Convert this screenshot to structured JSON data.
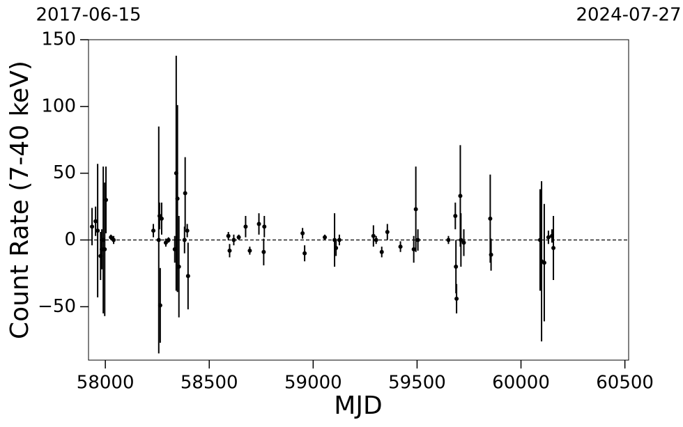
{
  "chart_data": {
    "type": "errorbar-scatter",
    "x_label": "MJD",
    "y_label": "Count Rate (7-40 keV)",
    "xlim": [
      57919,
      60518
    ],
    "ylim": [
      -90,
      150
    ],
    "xticks": [
      58000,
      58500,
      59000,
      59500,
      60000,
      60500
    ],
    "yticks": [
      {
        "value": -50,
        "label": "−50"
      },
      0,
      50,
      100,
      150
    ],
    "x2ticks": [
      {
        "value": 57919,
        "label": "2017-06-15"
      },
      {
        "value": 60518,
        "label": "2024-07-27"
      }
    ],
    "hline": 0,
    "color": "#000000",
    "series": [
      {
        "color": "#000000",
        "x": [
          57936,
          57953,
          57963,
          57977,
          57983,
          57990,
          57997,
          58003,
          58027,
          58040,
          58231,
          58257,
          58261,
          58264,
          58271,
          58291,
          58304,
          58334,
          58341,
          58347,
          58354,
          58381,
          58384,
          58394,
          58398,
          58592,
          58598,
          58618,
          58642,
          58675,
          58695,
          58739,
          58762,
          58765,
          58949,
          58959,
          59056,
          59103,
          59110,
          59126,
          59290,
          59303,
          59330,
          59357,
          59420,
          59484,
          59494,
          59504,
          59651,
          59684,
          59687,
          59690,
          59708,
          59711,
          59725,
          59852,
          59856,
          60092,
          60099,
          60112,
          60132,
          60149,
          60156
        ],
        "values": [
          10,
          14,
          7,
          -12,
          -7,
          0,
          -7,
          30,
          2,
          0,
          7,
          0,
          18,
          -49,
          16,
          -2,
          0,
          -7,
          50,
          31,
          -20,
          0,
          35,
          7,
          -27,
          3,
          -8,
          0,
          2,
          10,
          -8,
          12,
          -9,
          10,
          5,
          -10,
          2,
          0,
          -6,
          0,
          3,
          0,
          -9,
          6,
          -5,
          -7,
          23,
          0,
          0,
          18,
          -20,
          -44,
          33,
          0,
          -2,
          16,
          -11,
          0,
          -16,
          -17,
          2,
          3,
          -6
        ],
        "errors": [
          14,
          11,
          50,
          18,
          15,
          55,
          50,
          25,
          2,
          3,
          5,
          85,
          10,
          28,
          12,
          3,
          2,
          10,
          88,
          70,
          38,
          10,
          27,
          5,
          25,
          3,
          5,
          4,
          2,
          8,
          3,
          8,
          10,
          8,
          4,
          6,
          2,
          20,
          6,
          4,
          8,
          3,
          4,
          6,
          4,
          10,
          32,
          8,
          3,
          10,
          20,
          11,
          38,
          20,
          10,
          33,
          12,
          38,
          60,
          44,
          5,
          5,
          24
        ]
      }
    ]
  }
}
